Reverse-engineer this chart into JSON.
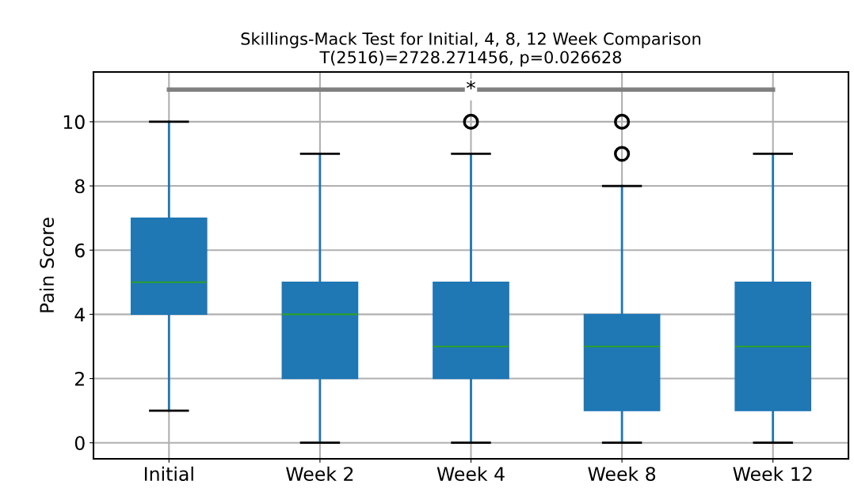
{
  "chart_data": {
    "type": "box",
    "title": "Skillings-Mack Test for Initial, 4, 8, 12 Week Comparison",
    "subtitle": "T(2516)=2728.271456, p=0.026628",
    "ylabel": "Pain Score",
    "categories": [
      "Initial",
      "Week 2",
      "Week 4",
      "Week 8",
      "Week 12"
    ],
    "series": [
      {
        "color": "#1f77b4",
        "boxes": [
          {
            "low": 1,
            "q1": 4,
            "median": 5,
            "q3": 7,
            "high": 10
          },
          {
            "low": 0,
            "q1": 2,
            "median": 4,
            "q3": 5,
            "high": 9
          },
          {
            "low": 0,
            "q1": 2,
            "median": 3,
            "q3": 5,
            "high": 9,
            "outliers": [
              10
            ]
          },
          {
            "low": 0,
            "q1": 1,
            "median": 3,
            "q3": 4,
            "high": 8,
            "outliers": [
              9,
              10
            ]
          },
          {
            "low": 0,
            "q1": 1,
            "median": 3,
            "q3": 5,
            "high": 9
          }
        ]
      }
    ],
    "ylim": [
      -0.5,
      11.55
    ],
    "yticks": [
      0,
      2,
      4,
      6,
      8,
      10
    ],
    "grid": true,
    "ref_lines": [
      {
        "axis": "y",
        "value": 11,
        "label": "*",
        "color": "#808080"
      }
    ]
  }
}
